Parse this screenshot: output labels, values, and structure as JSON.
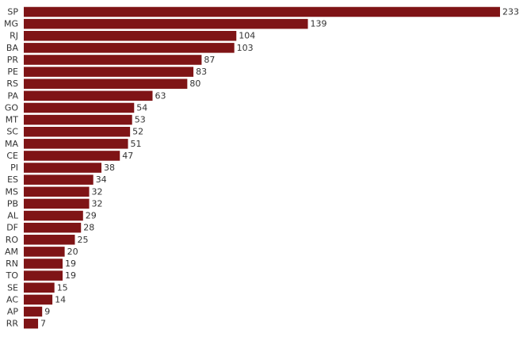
{
  "chart_data": {
    "type": "bar",
    "orientation": "horizontal",
    "color": "#7f1416",
    "categories": [
      "SP",
      "MG",
      "RJ",
      "BA",
      "PR",
      "PE",
      "RS",
      "PA",
      "GO",
      "MT",
      "SC",
      "MA",
      "CE",
      "PI",
      "ES",
      "MS",
      "PB",
      "AL",
      "DF",
      "RO",
      "AM",
      "RN",
      "TO",
      "SE",
      "AC",
      "AP",
      "RR"
    ],
    "values": [
      233,
      139,
      104,
      103,
      87,
      83,
      80,
      63,
      54,
      53,
      52,
      51,
      47,
      38,
      34,
      32,
      32,
      29,
      28,
      25,
      20,
      19,
      19,
      15,
      14,
      9,
      7
    ]
  }
}
